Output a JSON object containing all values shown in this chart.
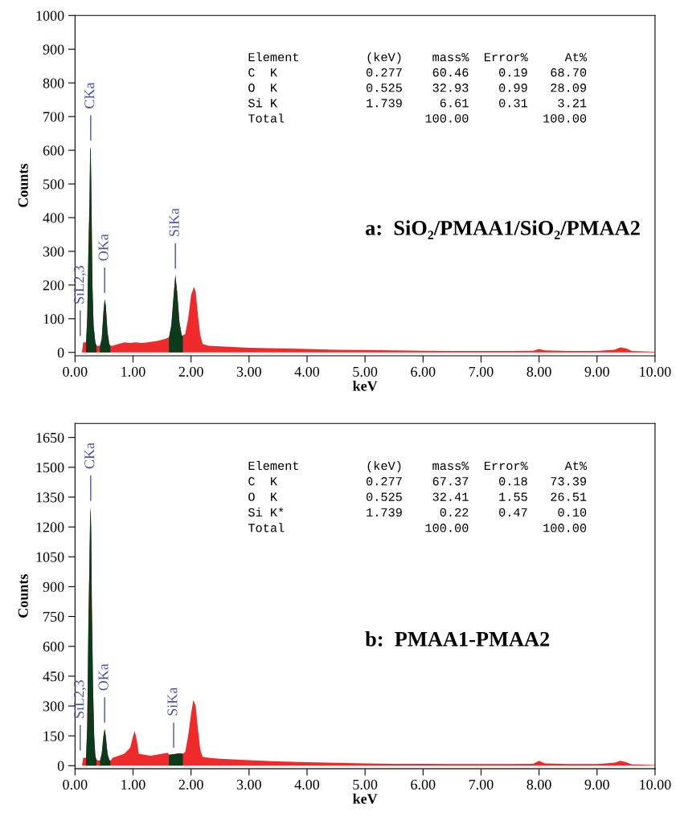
{
  "chart_data": [
    {
      "type": "area",
      "title": "a:  SiO₂/PMAA1/SiO₂/PMAA2",
      "xlabel": "keV",
      "ylabel": "Counts",
      "xlim": [
        0,
        10
      ],
      "ylim": [
        -10,
        1000
      ],
      "xticks": [
        {
          "value": 0,
          "label": "0.00"
        },
        {
          "value": 1,
          "label": "1.00"
        },
        {
          "value": 2,
          "label": "2.00"
        },
        {
          "value": 3,
          "label": "3.00"
        },
        {
          "value": 4,
          "label": "4.00"
        },
        {
          "value": 5,
          "label": "5.00"
        },
        {
          "value": 6,
          "label": "6.00"
        },
        {
          "value": 7,
          "label": "7.00"
        },
        {
          "value": 8,
          "label": "8.00"
        },
        {
          "value": 9,
          "label": "9.00"
        },
        {
          "value": 10,
          "label": "10.00"
        }
      ],
      "yticks": [
        0,
        100,
        200,
        300,
        400,
        500,
        600,
        700,
        800,
        900,
        1000
      ],
      "series": [
        {
          "color": "#ee2a2a",
          "x": [
            0.0,
            0.12,
            0.14,
            0.19,
            0.21,
            0.23,
            0.25,
            0.26,
            0.27,
            0.28,
            0.3,
            0.32,
            0.35,
            0.37,
            0.43,
            0.46,
            0.49,
            0.51,
            0.53,
            0.56,
            0.59,
            0.61,
            0.65,
            0.75,
            0.85,
            0.95,
            1.05,
            1.15,
            1.25,
            1.35,
            1.45,
            1.55,
            1.62,
            1.66,
            1.7,
            1.73,
            1.76,
            1.8,
            1.84,
            1.86,
            1.9,
            1.95,
            2.0,
            2.05,
            2.08,
            2.12,
            2.16,
            2.2,
            2.3,
            2.5,
            3.0,
            3.5,
            4.0,
            4.5,
            5.0,
            5.5,
            6.0,
            6.5,
            7.0,
            7.5,
            7.9,
            8.0,
            8.1,
            8.5,
            9.0,
            9.3,
            9.4,
            9.5,
            9.6,
            10.0
          ],
          "values": [
            0,
            0,
            30,
            30,
            100,
            300,
            450,
            600,
            610,
            500,
            200,
            80,
            30,
            20,
            20,
            40,
            120,
            158,
            140,
            60,
            25,
            20,
            20,
            25,
            30,
            28,
            30,
            28,
            30,
            32,
            35,
            40,
            45,
            80,
            170,
            230,
            180,
            90,
            50,
            50,
            55,
            100,
            170,
            195,
            180,
            110,
            50,
            25,
            20,
            18,
            14,
            12,
            10,
            8,
            7,
            6,
            5,
            4,
            4,
            4,
            5,
            10,
            6,
            4,
            4,
            8,
            15,
            12,
            4,
            2
          ]
        },
        {
          "color": "#0b3a1c",
          "x": [
            0.19,
            0.21,
            0.23,
            0.25,
            0.26,
            0.27,
            0.28,
            0.3,
            0.32,
            0.35,
            0.37
          ],
          "values": [
            30,
            100,
            300,
            450,
            600,
            610,
            500,
            200,
            80,
            30,
            20
          ]
        },
        {
          "color": "#0b3a1c",
          "x": [
            0.43,
            0.46,
            0.49,
            0.51,
            0.53,
            0.56,
            0.59,
            0.61
          ],
          "values": [
            20,
            40,
            120,
            158,
            140,
            60,
            25,
            20
          ]
        },
        {
          "color": "#0b3a1c",
          "x": [
            1.62,
            1.66,
            1.7,
            1.73,
            1.76,
            1.8,
            1.84,
            1.86
          ],
          "values": [
            45,
            80,
            170,
            230,
            180,
            90,
            50,
            50
          ]
        }
      ],
      "annotations": [
        {
          "text": "SiL2,3",
          "x": 0.09,
          "y": 30
        },
        {
          "text": "CKa",
          "x": 0.27,
          "y": 610
        },
        {
          "text": "OKa",
          "x": 0.51,
          "y": 158
        },
        {
          "text": "SiKa",
          "x": 1.73,
          "y": 230
        },
        "Element         (keV)    mass%  Error%     At%",
        "C  K            0.277    60.46    0.19   68.70",
        "O  K            0.525    32.93    0.99   28.09",
        "Si K            1.739     6.61    0.31    3.21",
        "Total                   100.00          100.00"
      ]
    },
    {
      "type": "area",
      "title": "b:  PMAA1-PMAA2",
      "xlabel": "keV",
      "ylabel": "Counts",
      "xlim": [
        0,
        10
      ],
      "ylim": [
        -15,
        1720
      ],
      "xticks": [
        {
          "value": 0,
          "label": "0.00"
        },
        {
          "value": 1,
          "label": "1.00"
        },
        {
          "value": 2,
          "label": "2.00"
        },
        {
          "value": 3,
          "label": "3.00"
        },
        {
          "value": 4,
          "label": "4.00"
        },
        {
          "value": 5,
          "label": "5.00"
        },
        {
          "value": 6,
          "label": "6.00"
        },
        {
          "value": 7,
          "label": "7.00"
        },
        {
          "value": 8,
          "label": "8.00"
        },
        {
          "value": 9,
          "label": "9.00"
        },
        {
          "value": 10,
          "label": "10.00"
        }
      ],
      "yticks": [
        0,
        150,
        300,
        450,
        600,
        750,
        900,
        1050,
        1200,
        1350,
        1500,
        1650
      ],
      "series": [
        {
          "color": "#ee2a2a",
          "x": [
            0.0,
            0.12,
            0.14,
            0.19,
            0.21,
            0.23,
            0.25,
            0.26,
            0.27,
            0.28,
            0.29,
            0.31,
            0.33,
            0.35,
            0.37,
            0.43,
            0.46,
            0.49,
            0.51,
            0.53,
            0.56,
            0.59,
            0.61,
            0.65,
            0.75,
            0.85,
            0.95,
            1.0,
            1.03,
            1.07,
            1.1,
            1.2,
            1.3,
            1.4,
            1.5,
            1.6,
            1.62,
            1.7,
            1.8,
            1.86,
            1.9,
            1.95,
            2.0,
            2.04,
            2.08,
            2.12,
            2.16,
            2.2,
            2.3,
            2.5,
            3.0,
            3.5,
            4.0,
            4.5,
            5.0,
            5.5,
            6.0,
            6.5,
            7.0,
            7.5,
            7.9,
            8.0,
            8.1,
            8.5,
            9.0,
            9.3,
            9.4,
            9.5,
            9.6,
            10.0
          ],
          "values": [
            0,
            0,
            40,
            40,
            200,
            700,
            1050,
            1250,
            1300,
            1150,
            800,
            400,
            150,
            50,
            30,
            25,
            60,
            150,
            185,
            150,
            60,
            30,
            25,
            40,
            50,
            60,
            90,
            150,
            175,
            120,
            60,
            55,
            50,
            55,
            60,
            65,
            55,
            58,
            62,
            60,
            70,
            150,
            260,
            330,
            300,
            180,
            80,
            45,
            40,
            35,
            28,
            22,
            18,
            15,
            12,
            10,
            10,
            9,
            9,
            9,
            10,
            25,
            12,
            8,
            8,
            15,
            25,
            18,
            6,
            3
          ]
        },
        {
          "color": "#0b3a1c",
          "x": [
            0.19,
            0.21,
            0.23,
            0.25,
            0.26,
            0.27,
            0.28,
            0.29,
            0.31,
            0.33,
            0.35,
            0.37
          ],
          "values": [
            40,
            200,
            700,
            1050,
            1250,
            1300,
            1150,
            800,
            400,
            150,
            50,
            30
          ]
        },
        {
          "color": "#0b3a1c",
          "x": [
            0.43,
            0.46,
            0.49,
            0.51,
            0.53,
            0.56,
            0.59,
            0.61
          ],
          "values": [
            25,
            60,
            150,
            185,
            150,
            60,
            30,
            25
          ]
        },
        {
          "color": "#0b3a1c",
          "x": [
            1.62,
            1.7,
            1.8,
            1.86
          ],
          "values": [
            55,
            58,
            62,
            60
          ]
        }
      ],
      "annotations": [
        {
          "text": "SiL2,3",
          "x": 0.09,
          "y": 45
        },
        {
          "text": "CKa",
          "x": 0.27,
          "y": 1300
        },
        {
          "text": "OKa",
          "x": 0.51,
          "y": 185
        },
        {
          "text": "SiKa",
          "x": 1.7,
          "y": 58
        },
        "Element         (keV)    mass%  Error%     At%",
        "C  K            0.277    67.37    0.18   73.39",
        "O  K            0.525    32.41    1.55   26.51",
        "Si K*           1.739     0.22    0.47    0.10",
        "Total                   100.00          100.00"
      ]
    }
  ]
}
